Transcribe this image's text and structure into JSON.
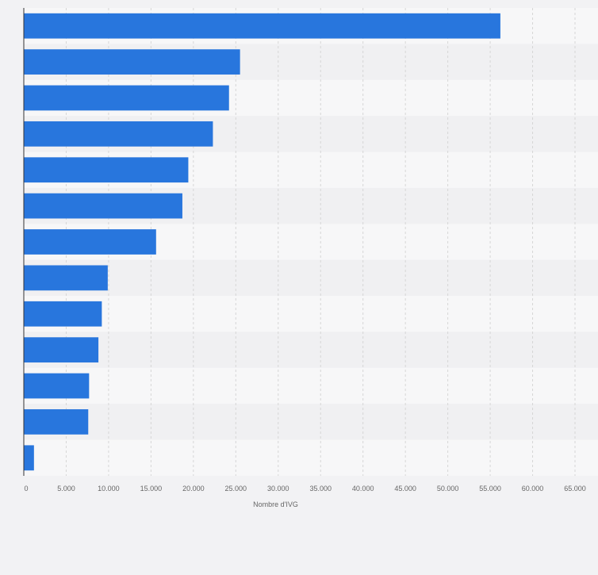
{
  "chart_data": {
    "type": "bar",
    "orientation": "horizontal",
    "title": "",
    "xlabel": "Nombre d'IVG",
    "ylabel": "",
    "categories": [
      "",
      "",
      "",
      "",
      "",
      "",
      "",
      "",
      "",
      "",
      "",
      "",
      ""
    ],
    "values": [
      56200,
      25500,
      24200,
      22300,
      19400,
      18700,
      15600,
      9900,
      9200,
      8800,
      7700,
      7600,
      1200
    ],
    "xlim": [
      0,
      65000
    ],
    "ticks": [
      0,
      5000,
      10000,
      15000,
      20000,
      25000,
      30000,
      35000,
      40000,
      45000,
      50000,
      55000,
      60000,
      65000
    ],
    "tick_labels": [
      "0",
      "5.000",
      "10.000",
      "15.000",
      "20.000",
      "25.000",
      "30.000",
      "35.000",
      "40.000",
      "45.000",
      "50.000",
      "55.000",
      "60.000",
      "65.000"
    ],
    "grid": true,
    "legend": "none",
    "colors": {
      "bar": "#2876dd",
      "band_light": "#f7f7f8",
      "band_dark": "#f0f0f2",
      "gridline": "#d6d6d6",
      "axis": "#333333",
      "tick_text": "#666666"
    }
  }
}
